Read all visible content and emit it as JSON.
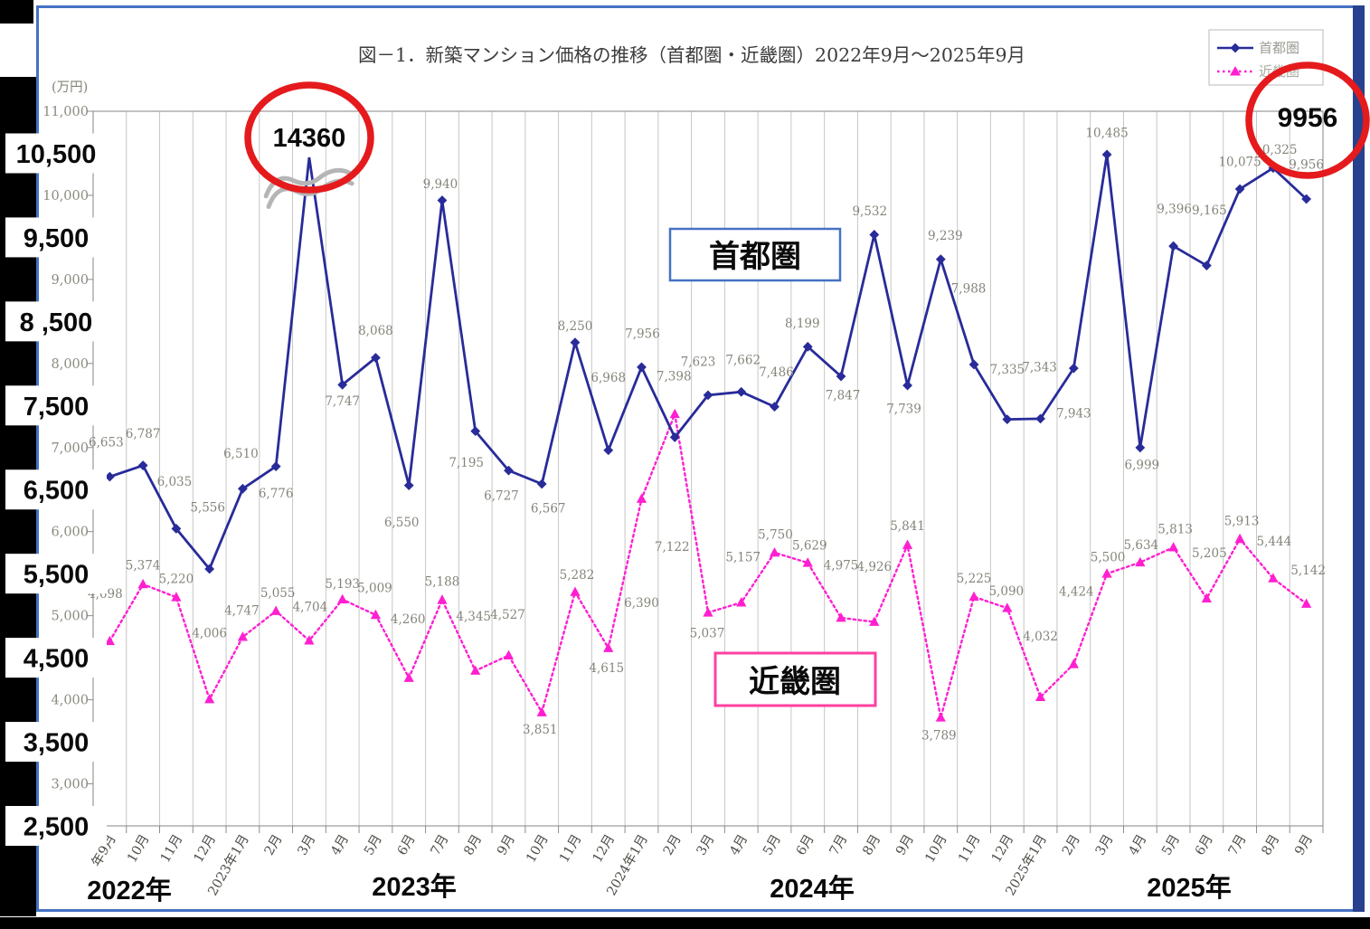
{
  "title": "図－1．新築マンション価格の推移（首都圏・近畿圏）2022年9月～2025年9月",
  "y_axis": {
    "unit": "(万円)",
    "big_ticks": [
      {
        "value": 10500,
        "label": "10,500"
      },
      {
        "value": 9500,
        "label": "9,500"
      },
      {
        "value": 8500,
        "label": "8 ,500"
      },
      {
        "value": 7500,
        "label": "7,500"
      },
      {
        "value": 6500,
        "label": "6,500"
      },
      {
        "value": 5500,
        "label": "5,500"
      },
      {
        "value": 4500,
        "label": "4,500"
      },
      {
        "value": 3500,
        "label": "3,500"
      },
      {
        "value": 2500,
        "label": "2,500"
      }
    ],
    "small_ticks": [
      {
        "value": 11000,
        "label": "11,000"
      },
      {
        "value": 10000,
        "label": "10,000"
      },
      {
        "value": 9000,
        "label": "9,000"
      },
      {
        "value": 8000,
        "label": "8,000"
      },
      {
        "value": 7000,
        "label": "7,000"
      },
      {
        "value": 6000,
        "label": "6,000"
      },
      {
        "value": 5000,
        "label": "5,000"
      },
      {
        "value": 4000,
        "label": "4,000"
      },
      {
        "value": 3000,
        "label": "3,000"
      }
    ]
  },
  "x_axis": {
    "years": [
      {
        "label": "2022年"
      },
      {
        "label": "2023年"
      },
      {
        "label": "2024年"
      },
      {
        "label": "2025年"
      }
    ]
  },
  "legend": {
    "items": [
      {
        "label": "首都圏"
      },
      {
        "label": "近畿圏"
      }
    ]
  },
  "annotations": {
    "peak_value": "14360",
    "latest_value": "9956",
    "series1_box_label": "首都圏",
    "series2_box_label": "近畿圏"
  },
  "chart_data": {
    "type": "line",
    "title": "図－1．新築マンション価格の推移（首都圏・近畿圏）2022年9月～2025年9月",
    "ylabel": "(万円)",
    "ylim": [
      2500,
      11000
    ],
    "y_tick_step": 500,
    "grid": "vertical-only",
    "legend_position": "top-right",
    "categories": [
      "年9月",
      "10月",
      "11月",
      "12月",
      "2023年1月",
      "2月",
      "3月",
      "4月",
      "5月",
      "6月",
      "7月",
      "8月",
      "9月",
      "10月",
      "11月",
      "12月",
      "2024年1月",
      "2月",
      "3月",
      "4月",
      "5月",
      "6月",
      "7月",
      "8月",
      "9月",
      "10月",
      "11月",
      "12月",
      "2025年1月",
      "2月",
      "3月",
      "4月",
      "5月",
      "6月",
      "7月",
      "8月",
      "9月"
    ],
    "series": [
      {
        "name": "首都圏",
        "color": "#282b99",
        "marker": "diamond",
        "line_style": "solid",
        "values": [
          6653,
          6787,
          6035,
          5556,
          6510,
          6776,
          14360,
          7747,
          8068,
          6550,
          9940,
          7195,
          6727,
          6567,
          8250,
          6968,
          7956,
          7122,
          7623,
          7662,
          7486,
          8199,
          7847,
          9532,
          7739,
          9239,
          7988,
          7335,
          7343,
          7943,
          10485,
          6999,
          9396,
          9165,
          10075,
          10325,
          9956
        ]
      },
      {
        "name": "近畿圏",
        "color": "#ff1fd0",
        "marker": "triangle",
        "line_style": "dashed",
        "values": [
          4698,
          5374,
          5220,
          4006,
          4747,
          5055,
          4704,
          5193,
          5009,
          4260,
          5188,
          4345,
          4527,
          3851,
          5282,
          4615,
          6390,
          7398,
          5037,
          5157,
          5750,
          5629,
          4975,
          4926,
          5841,
          3789,
          5225,
          5090,
          4032,
          4424,
          5500,
          5634,
          5813,
          5205,
          5913,
          5444,
          5142
        ]
      }
    ],
    "annotations": [
      {
        "text": "14360"
      },
      {
        "text": "9956"
      }
    ]
  }
}
